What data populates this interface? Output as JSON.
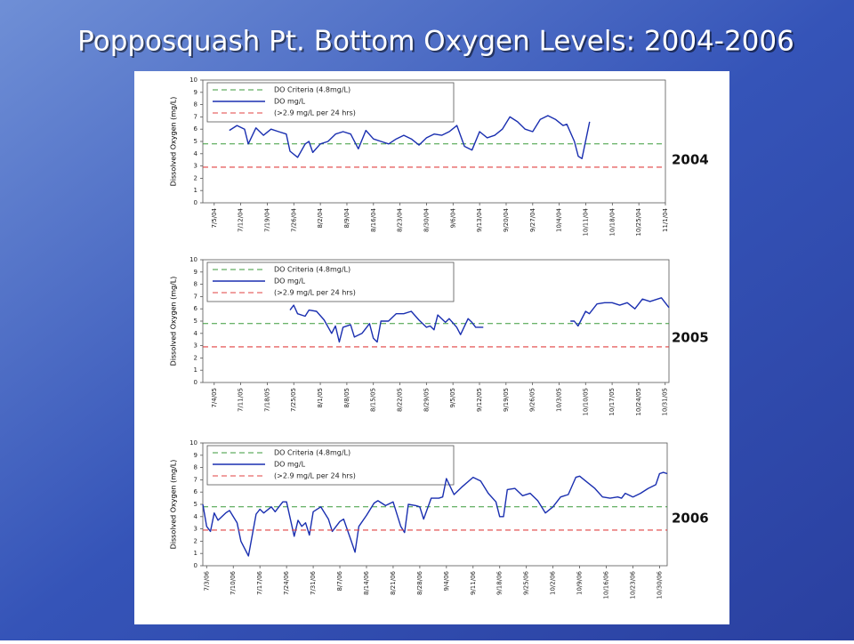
{
  "title": "Popposquash Pt. Bottom Oxygen Levels: 2004-2006",
  "chart_data": [
    {
      "type": "line",
      "annotation": "2004",
      "ylabel": "Dissolved Oxygen (mg/L)",
      "x": [
        "7/9/04",
        "7/11/04",
        "7/13/04",
        "7/14/04",
        "7/16/04",
        "7/18/04",
        "7/20/04",
        "7/22/04",
        "7/24/04",
        "7/25/04",
        "7/27/04",
        "7/29/04",
        "7/30/04",
        "7/31/04",
        "8/2/04",
        "8/4/04",
        "8/6/04",
        "8/8/04",
        "8/10/04",
        "8/12/04",
        "8/14/04",
        "8/16/04",
        "8/18/04",
        "8/20/04",
        "8/22/04",
        "8/24/04",
        "8/26/04",
        "8/28/04",
        "8/30/04",
        "9/1/04",
        "9/3/04",
        "9/5/04",
        "9/7/04",
        "9/9/04",
        "9/11/04",
        "9/13/04",
        "9/15/04",
        "9/17/04",
        "9/19/04",
        "9/21/04",
        "9/23/04",
        "9/25/04",
        "9/27/04",
        "9/29/04",
        "10/1/04",
        "10/3/04",
        "10/5/04",
        "10/6/04",
        "10/8/04",
        "10/9/04",
        "10/10/04",
        "10/12/04"
      ],
      "series": [
        {
          "name": "DO Criteria (4.8mg/L)",
          "color": "#3a9a3a",
          "dash": true,
          "y": 4.8
        },
        {
          "name": "DO mg/L",
          "color": "#1a2fb0",
          "values": [
            5.9,
            6.3,
            6.0,
            4.8,
            6.1,
            5.5,
            6.0,
            5.8,
            5.6,
            4.2,
            3.7,
            4.8,
            5.0,
            4.1,
            4.8,
            5.0,
            5.6,
            5.8,
            5.6,
            4.4,
            5.9,
            5.2,
            5.0,
            4.8,
            5.2,
            5.5,
            5.2,
            4.7,
            5.3,
            5.6,
            5.5,
            5.8,
            6.3,
            4.6,
            4.3,
            5.8,
            5.3,
            5.5,
            6.0,
            7.0,
            6.6,
            6.0,
            5.8,
            6.8,
            7.1,
            6.8,
            6.3,
            6.4,
            5.0,
            3.8,
            3.6,
            6.6
          ]
        },
        {
          "name": "(>2.9 mg/L per 24 hrs)",
          "color": "#e04040",
          "dash": true,
          "y": 2.9
        }
      ],
      "xlim": [
        "7/2/04",
        "11/1/04"
      ],
      "xticks": [
        "7/5/04",
        "7/12/04",
        "7/19/04",
        "7/26/04",
        "8/2/04",
        "8/9/04",
        "8/16/04",
        "8/23/04",
        "8/30/04",
        "9/6/04",
        "9/13/04",
        "9/20/04",
        "9/27/04",
        "10/4/04",
        "10/11/04",
        "10/18/04",
        "10/25/04",
        "11/1/04"
      ],
      "ylim": [
        0,
        10
      ],
      "yticks": [
        0,
        1,
        2,
        3,
        4,
        5,
        6,
        7,
        8,
        9,
        10
      ]
    },
    {
      "type": "line",
      "annotation": "2005",
      "ylabel": "Dissolved Oxygen (mg/L)",
      "x": [
        "7/24/05",
        "7/25/05",
        "7/26/05",
        "7/28/05",
        "7/29/05",
        "7/31/05",
        "8/2/05",
        "8/4/05",
        "8/5/05",
        "8/6/05",
        "8/7/05",
        "8/9/05",
        "8/10/05",
        "8/12/05",
        "8/14/05",
        "8/15/05",
        "8/16/05",
        "8/17/05",
        "8/19/05",
        "8/21/05",
        "8/23/05",
        "8/25/05",
        "8/27/05",
        "8/29/05",
        "8/30/05",
        "8/31/05",
        "9/1/05",
        "9/3/05",
        "9/4/05",
        "9/6/05",
        "9/7/05",
        "9/9/05",
        "9/10/05",
        "9/11/05",
        "9/13/05",
        "9/25/05",
        "10/6/05",
        "10/7/05",
        "10/8/05",
        "10/10/05",
        "10/11/05",
        "10/13/05",
        "10/15/05",
        "10/17/05",
        "10/19/05",
        "10/21/05",
        "10/23/05",
        "10/25/05",
        "10/27/05",
        "10/29/05",
        "10/30/05",
        "11/1/05"
      ],
      "series": [
        {
          "name": "DO Criteria (4.8mg/L)",
          "color": "#3a9a3a",
          "dash": true,
          "y": 4.8
        },
        {
          "name": "DO mg/L",
          "color": "#1a2fb0",
          "values": [
            5.9,
            6.3,
            5.6,
            5.4,
            5.9,
            5.8,
            5.1,
            4.0,
            4.6,
            3.3,
            4.5,
            4.7,
            3.7,
            4.0,
            4.8,
            3.6,
            3.3,
            5.0,
            5.0,
            5.6,
            5.6,
            5.8,
            5.1,
            4.5,
            4.6,
            4.3,
            5.5,
            4.9,
            5.2,
            4.5,
            3.9,
            5.2,
            4.9,
            4.5,
            4.5,
            null,
            5.0,
            5.0,
            4.6,
            5.8,
            5.6,
            6.4,
            6.5,
            6.5,
            6.3,
            6.5,
            6.0,
            6.8,
            6.6,
            6.8,
            6.9,
            6.1
          ]
        },
        {
          "name": "(>2.9 mg/L per 24 hrs)",
          "color": "#e04040",
          "dash": true,
          "y": 2.9
        }
      ],
      "xlim": [
        "7/1/05",
        "11/1/05"
      ],
      "xticks": [
        "7/4/05",
        "7/11/05",
        "7/18/05",
        "7/25/05",
        "8/1/05",
        "8/8/05",
        "8/15/05",
        "8/22/05",
        "8/29/05",
        "9/5/05",
        "9/12/05",
        "9/19/05",
        "9/26/05",
        "10/3/05",
        "10/10/05",
        "10/17/05",
        "10/24/05",
        "10/31/05"
      ],
      "ylim": [
        0,
        10
      ],
      "yticks": [
        0,
        1,
        2,
        3,
        4,
        5,
        6,
        7,
        8,
        9,
        10
      ]
    },
    {
      "type": "line",
      "annotation": "2006",
      "ylabel": "Dissolved Oxygen (mg/L)",
      "x": [
        "7/2/06",
        "7/3/06",
        "7/4/06",
        "7/5/06",
        "7/6/06",
        "7/8/06",
        "7/9/06",
        "7/11/06",
        "7/12/06",
        "7/14/06",
        "7/16/06",
        "7/17/06",
        "7/18/06",
        "7/20/06",
        "7/21/06",
        "7/23/06",
        "7/24/06",
        "7/26/06",
        "7/27/06",
        "7/28/06",
        "7/29/06",
        "7/30/06",
        "7/31/06",
        "8/2/06",
        "8/4/06",
        "8/5/06",
        "8/7/06",
        "8/8/06",
        "8/10/06",
        "8/11/06",
        "8/12/06",
        "8/14/06",
        "8/16/06",
        "8/17/06",
        "8/19/06",
        "8/21/06",
        "8/23/06",
        "8/24/06",
        "8/25/06",
        "8/27/06",
        "8/28/06",
        "8/29/06",
        "8/31/06",
        "9/2/06",
        "9/3/06",
        "9/4/06",
        "9/6/06",
        "9/8/06",
        "9/11/06",
        "9/13/06",
        "9/15/06",
        "9/17/06",
        "9/18/06",
        "9/19/06",
        "9/20/06",
        "9/22/06",
        "9/24/06",
        "9/26/06",
        "9/28/06",
        "9/30/06",
        "10/2/06",
        "10/4/06",
        "10/6/06",
        "10/8/06",
        "10/9/06",
        "10/11/06",
        "10/13/06",
        "10/15/06",
        "10/17/06",
        "10/19/06",
        "10/20/06",
        "10/21/06",
        "10/23/06",
        "10/25/06",
        "10/27/06",
        "10/29/06",
        "10/30/06",
        "10/31/06",
        "11/1/06"
      ],
      "series": [
        {
          "name": "DO Criteria (4.8mg/L)",
          "color": "#3a9a3a",
          "dash": true,
          "y": 4.8
        },
        {
          "name": "DO mg/L",
          "color": "#1a2fb0",
          "values": [
            5.0,
            3.2,
            2.8,
            4.3,
            3.7,
            4.3,
            4.5,
            3.5,
            2.0,
            0.8,
            4.2,
            4.6,
            4.3,
            4.8,
            4.4,
            5.2,
            5.2,
            2.4,
            3.7,
            3.2,
            3.5,
            2.5,
            4.4,
            4.8,
            3.8,
            2.8,
            3.6,
            3.8,
            2.0,
            1.1,
            3.2,
            4.1,
            5.1,
            5.3,
            4.9,
            5.2,
            3.2,
            2.7,
            5.0,
            4.9,
            4.8,
            3.8,
            5.5,
            5.5,
            5.6,
            7.1,
            5.8,
            6.4,
            7.2,
            6.9,
            5.9,
            5.2,
            4.0,
            4.0,
            6.2,
            6.3,
            5.7,
            5.9,
            5.3,
            4.3,
            4.8,
            5.6,
            5.8,
            7.2,
            7.3,
            6.8,
            6.3,
            5.6,
            5.5,
            5.6,
            5.5,
            5.9,
            5.6,
            5.9,
            6.3,
            6.6,
            7.5,
            7.6,
            7.5
          ]
        },
        {
          "name": "(>2.9 mg/L per 24 hrs)",
          "color": "#e04040",
          "dash": true,
          "y": 2.9
        }
      ],
      "xlim": [
        "7/2/06",
        "11/1/06"
      ],
      "xticks": [
        "7/3/06",
        "7/10/06",
        "7/17/06",
        "7/24/06",
        "7/31/06",
        "8/7/06",
        "8/14/06",
        "8/21/06",
        "8/28/06",
        "9/4/06",
        "9/11/06",
        "9/18/06",
        "9/25/06",
        "10/2/06",
        "10/9/06",
        "10/16/06",
        "10/23/06",
        "10/30/06"
      ],
      "ylim": [
        0,
        10
      ],
      "yticks": [
        0,
        1,
        2,
        3,
        4,
        5,
        6,
        7,
        8,
        9,
        10
      ]
    }
  ]
}
